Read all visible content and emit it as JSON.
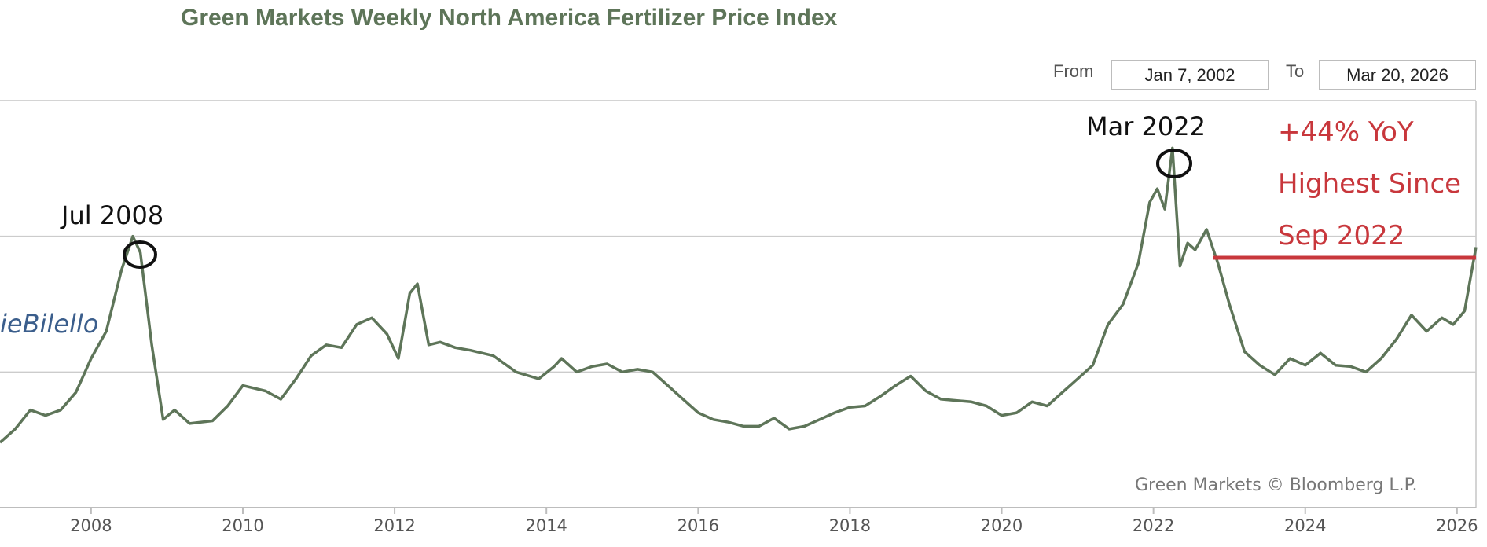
{
  "header": {
    "title": "Green Markets Weekly North America Fertilizer Price Index",
    "from_label": "From",
    "from_value": "Jan 7, 2002",
    "to_label": "To",
    "to_value": "Mar 20, 2026"
  },
  "annotations": {
    "peak_2008": "Jul 2008",
    "peak_2022": "Mar 2022",
    "yoy_line1": "+44% YoY",
    "yoy_line2": "Highest Since",
    "yoy_line3": "Sep 2022",
    "watermark": "ieBilello",
    "credit": "Green Markets © Bloomberg L.P."
  },
  "colors": {
    "series": "#5e7559",
    "annotation_red": "#c8373c",
    "grid": "#cccccc",
    "axis_text": "#555555",
    "watermark": "#3b5e8c"
  },
  "chart_data": {
    "type": "line",
    "title": "Green Markets Weekly North America Fertilizer Price Index",
    "xlabel": "",
    "ylabel": "",
    "x_ticks": [
      "2008",
      "2010",
      "2012",
      "2014",
      "2016",
      "2018",
      "2020",
      "2022",
      "2024",
      "2026"
    ],
    "xlim": [
      2006.8,
      2026.25
    ],
    "ylim": [
      0,
      300
    ],
    "grid": true,
    "series": [
      {
        "name": "Fertilizer Price Index",
        "x": [
          2006.8,
          2007.0,
          2007.2,
          2007.4,
          2007.6,
          2007.8,
          2008.0,
          2008.2,
          2008.4,
          2008.55,
          2008.65,
          2008.8,
          2008.95,
          2009.1,
          2009.3,
          2009.6,
          2009.8,
          2010.0,
          2010.3,
          2010.5,
          2010.7,
          2010.9,
          2011.1,
          2011.3,
          2011.5,
          2011.7,
          2011.9,
          2012.05,
          2012.2,
          2012.3,
          2012.45,
          2012.6,
          2012.8,
          2013.0,
          2013.3,
          2013.6,
          2013.9,
          2014.1,
          2014.2,
          2014.4,
          2014.6,
          2014.8,
          2015.0,
          2015.2,
          2015.4,
          2015.6,
          2015.8,
          2016.0,
          2016.2,
          2016.4,
          2016.6,
          2016.8,
          2017.0,
          2017.2,
          2017.4,
          2017.6,
          2017.8,
          2018.0,
          2018.2,
          2018.4,
          2018.6,
          2018.8,
          2019.0,
          2019.2,
          2019.4,
          2019.6,
          2019.8,
          2020.0,
          2020.2,
          2020.4,
          2020.6,
          2020.8,
          2021.0,
          2021.2,
          2021.4,
          2021.6,
          2021.8,
          2021.95,
          2022.05,
          2022.15,
          2022.25,
          2022.35,
          2022.45,
          2022.55,
          2022.7,
          2022.85,
          2023.0,
          2023.2,
          2023.4,
          2023.6,
          2023.8,
          2024.0,
          2024.2,
          2024.4,
          2024.6,
          2024.8,
          2025.0,
          2025.2,
          2025.4,
          2025.6,
          2025.8,
          2025.95,
          2026.1,
          2026.25
        ],
        "y": [
          48,
          58,
          72,
          68,
          72,
          85,
          110,
          130,
          175,
          200,
          188,
          120,
          65,
          72,
          62,
          64,
          75,
          90,
          86,
          80,
          95,
          112,
          120,
          118,
          135,
          140,
          128,
          110,
          158,
          165,
          120,
          122,
          118,
          116,
          112,
          100,
          95,
          104,
          110,
          100,
          104,
          106,
          100,
          102,
          100,
          90,
          80,
          70,
          65,
          63,
          60,
          60,
          66,
          58,
          60,
          65,
          70,
          74,
          75,
          82,
          90,
          97,
          86,
          80,
          79,
          78,
          75,
          68,
          70,
          78,
          75,
          85,
          95,
          105,
          135,
          150,
          180,
          225,
          235,
          220,
          265,
          178,
          195,
          190,
          205,
          180,
          150,
          115,
          105,
          98,
          110,
          105,
          114,
          105,
          104,
          100,
          110,
          124,
          142,
          130,
          140,
          135,
          145,
          192
        ]
      }
    ]
  }
}
